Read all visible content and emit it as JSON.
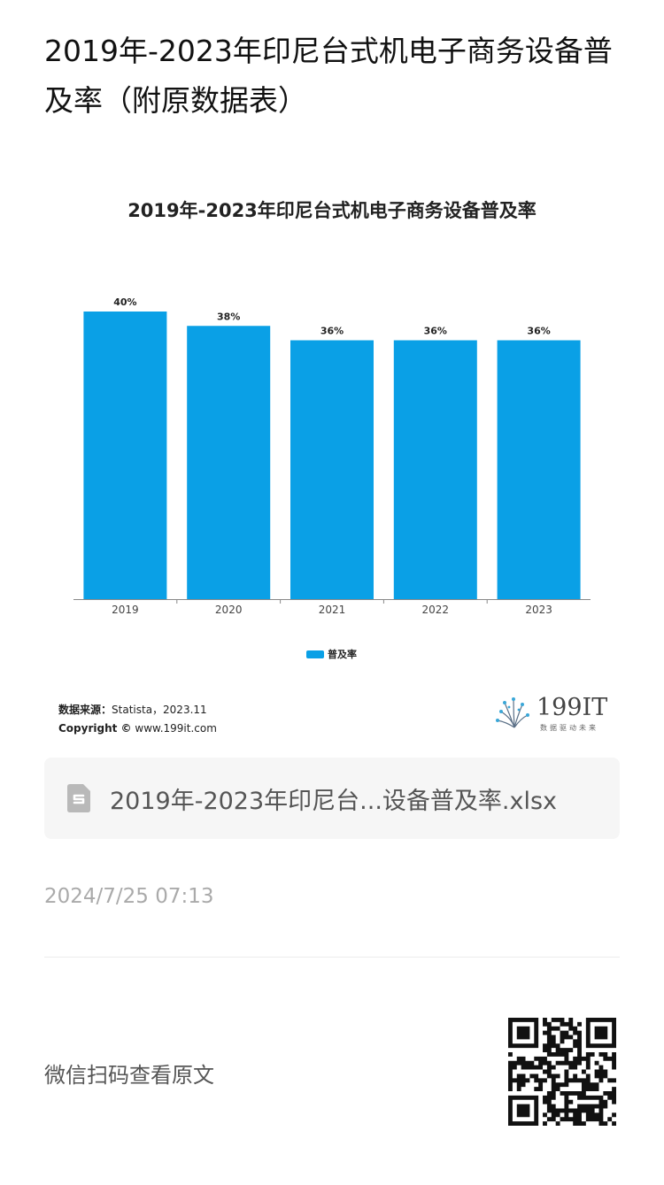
{
  "article": {
    "title": "2019年-2023年印尼台式机电子商务设备普及率（附原数据表）"
  },
  "chart_data": {
    "type": "bar",
    "title": "2019年-2023年印尼台式机电子商务设备普及率",
    "categories": [
      "2019",
      "2020",
      "2021",
      "2022",
      "2023"
    ],
    "series": [
      {
        "name": "普及率",
        "values": [
          40,
          38,
          36,
          36,
          36
        ],
        "labels": [
          "40%",
          "38%",
          "36%",
          "36%",
          "36%"
        ]
      }
    ],
    "ylim": [
      0,
      40
    ],
    "unit": "%",
    "grid": false,
    "legend": "bottom-center",
    "color": "#0aa0e6"
  },
  "source": {
    "label": "数据来源：",
    "value": "Statista，2023.11",
    "copyright_label": "Copyright ©",
    "copyright_value": "www.199it.com"
  },
  "logo": {
    "text": "199IT",
    "tagline": "数据驱动未来"
  },
  "attachment": {
    "icon": "spreadsheet-file-icon",
    "file_name": "2019年-2023年印尼台...设备普及率.xlsx"
  },
  "timestamp": "2024/7/25 07:13",
  "footer": {
    "scan_label": "微信扫码查看原文",
    "qr_icon": "qr-code-icon"
  }
}
